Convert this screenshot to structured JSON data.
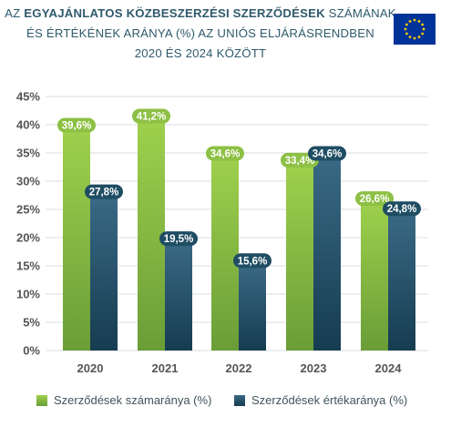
{
  "title": {
    "part1": "AZ ",
    "part2_bold": "EGYAJÁNLATOS KÖZBESZERZÉSI SZERZŐDÉSEK",
    "part3": " SZÁMÁNAK",
    "line2": "ÉS ÉRTÉKÉNEK ARÁNYA (%) AZ UNIÓS ELJÁRÁSRENDBEN",
    "line3": "2020 ÉS 2024 KÖZÖTT"
  },
  "colors": {
    "green": "#8dc044",
    "navy": "#1f4d63",
    "grid": "#d9dde0",
    "tick_text": "#555555",
    "flag_blue": "#003399",
    "flag_star": "#ffcc00"
  },
  "chart_data": {
    "type": "bar",
    "categories": [
      "2020",
      "2021",
      "2022",
      "2023",
      "2024"
    ],
    "series": [
      {
        "name": "Szerződések számaránya (%)",
        "values": [
          39.6,
          41.2,
          34.6,
          33.4,
          26.6
        ],
        "labels": [
          "39,6%",
          "41,2%",
          "34,6%",
          "33,4%",
          "26,6%"
        ],
        "color": "#8dc044"
      },
      {
        "name": "Szerződések értékaránya (%)",
        "values": [
          27.8,
          19.5,
          15.6,
          34.6,
          24.8
        ],
        "labels": [
          "27,8%",
          "19,5%",
          "15,6%",
          "34,6%",
          "24,8%"
        ],
        "color": "#1f4d63"
      }
    ],
    "yticks": [
      "0%",
      "5%",
      "10%",
      "15%",
      "20%",
      "25%",
      "30%",
      "35%",
      "40%",
      "45%"
    ],
    "ylim": [
      0,
      45
    ],
    "grid": true,
    "legend_position": "bottom"
  }
}
